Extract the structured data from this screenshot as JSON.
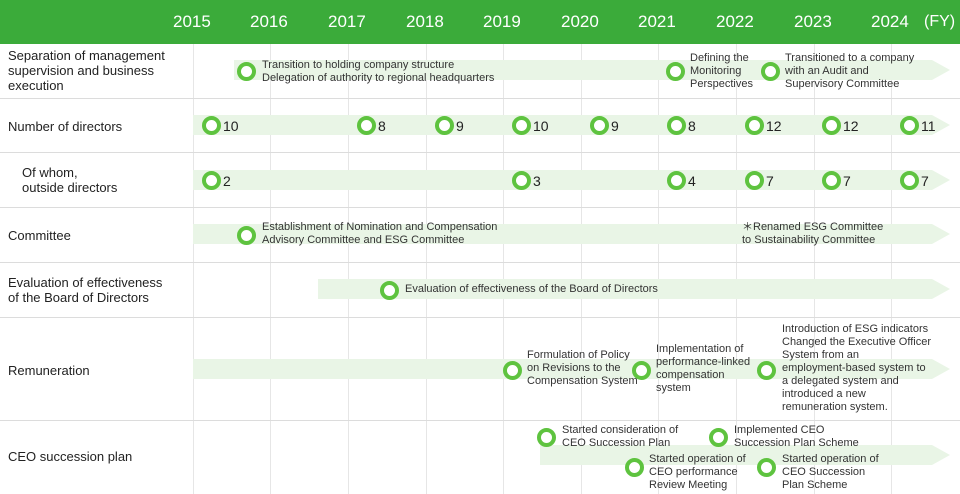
{
  "header": {
    "years": [
      "2015",
      "2016",
      "2017",
      "2018",
      "2019",
      "2020",
      "2021",
      "2022",
      "2023",
      "2024"
    ],
    "unit": "(FY)"
  },
  "rows": {
    "separation": [
      "Separation of management",
      "supervision and business",
      "execution"
    ],
    "directors": [
      "Number of directors"
    ],
    "outside": [
      "Of whom,",
      "outside directors"
    ],
    "committee": [
      "Committee"
    ],
    "evaluation": [
      "Evaluation of effectiveness",
      "of the Board of Directors"
    ],
    "remuneration": [
      "Remuneration"
    ],
    "ceo": [
      "CEO succession plan"
    ]
  },
  "directors_count": [
    {
      "year": "2015",
      "value": "10"
    },
    {
      "year": "2017",
      "value": "8"
    },
    {
      "year": "2018",
      "value": "9"
    },
    {
      "year": "2019",
      "value": "10"
    },
    {
      "year": "2020",
      "value": "9"
    },
    {
      "year": "2021",
      "value": "8"
    },
    {
      "year": "2022",
      "value": "12"
    },
    {
      "year": "2023",
      "value": "12"
    },
    {
      "year": "2024",
      "value": "11"
    }
  ],
  "outside_count": [
    {
      "year": "2015",
      "value": "2"
    },
    {
      "year": "2019",
      "value": "3"
    },
    {
      "year": "2021",
      "value": "4"
    },
    {
      "year": "2022",
      "value": "7"
    },
    {
      "year": "2023",
      "value": "7"
    },
    {
      "year": "2024",
      "value": "7"
    }
  ],
  "annotations": {
    "holding": [
      "Transition to holding company structure",
      "Delegation of authority to regional headquarters"
    ],
    "monitoring": [
      "Defining the",
      "Monitoring",
      "Perspectives"
    ],
    "audit": [
      "Transitioned to a company",
      "with an Audit and",
      "Supervisory Committee"
    ],
    "nomination": [
      "Establishment of Nomination and Compensation",
      "Advisory Committee and ESG Committee"
    ],
    "renamed": [
      "＊Renamed ESG Committee",
      "to Sustainability Committee"
    ],
    "evaluation": [
      "Evaluation of effectiveness of the Board of Directors"
    ],
    "policy": [
      "Formulation of Policy",
      "on Revisions to the",
      "Compensation System"
    ],
    "performance": [
      "Implementation of",
      "performance-linked",
      "compensation",
      "system"
    ],
    "esg": [
      "Introduction of ESG indicators",
      "Changed the Executive Officer",
      "System from an",
      "employment-based system to",
      "a delegated system and",
      "introduced a new",
      "remuneration system."
    ],
    "ceo_consider": [
      "Started consideration of",
      "CEO Succession Plan"
    ],
    "ceo_implemented": [
      "Implemented CEO",
      "Succession Plan Scheme"
    ],
    "ceo_review": [
      "Started operation of",
      "CEO performance",
      "Review Meeting"
    ],
    "ceo_scheme": [
      "Started operation of",
      "CEO Succession",
      "Plan Scheme"
    ]
  },
  "colors": {
    "header": "#3bab3a",
    "arrow": "#e9f5e6",
    "dot_ring": "#5ec33f",
    "grid": "#dcdcdc"
  }
}
